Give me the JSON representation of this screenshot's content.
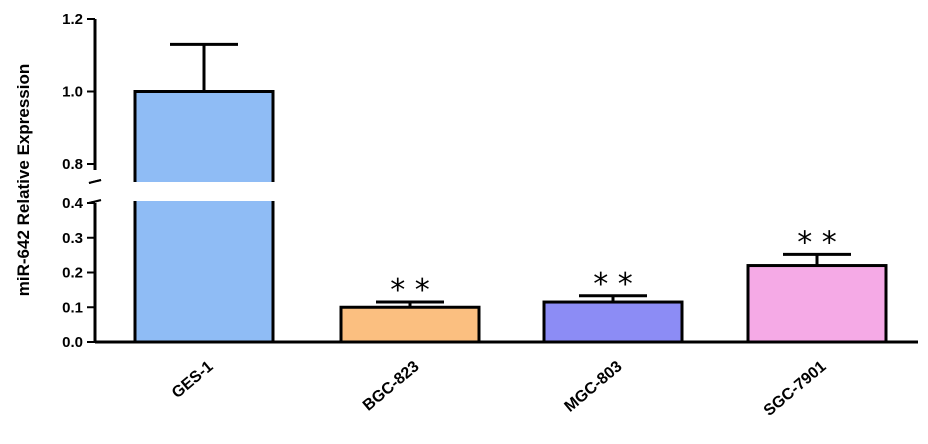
{
  "chart_data": {
    "type": "bar",
    "ylabel": "miR-642 Relative Expression",
    "y_axis_break": [
      0.4,
      0.8
    ],
    "yticks_lower": [
      "0.0",
      "0.1",
      "0.2",
      "0.3",
      "0.4"
    ],
    "yticks_upper": [
      "0.8",
      "1.0",
      "1.2"
    ],
    "categories": [
      "GES-1",
      "BGC-823",
      "MGC-803",
      "SGC-7901"
    ],
    "values": [
      1.0,
      0.1,
      0.115,
      0.22
    ],
    "errors": [
      0.13,
      0.015,
      0.018,
      0.032
    ],
    "significance": [
      "",
      "* *",
      "* *",
      "* *"
    ],
    "colors": [
      "#8fbcf5",
      "#fbbf80",
      "#8c8cf5",
      "#f5aae6"
    ]
  }
}
